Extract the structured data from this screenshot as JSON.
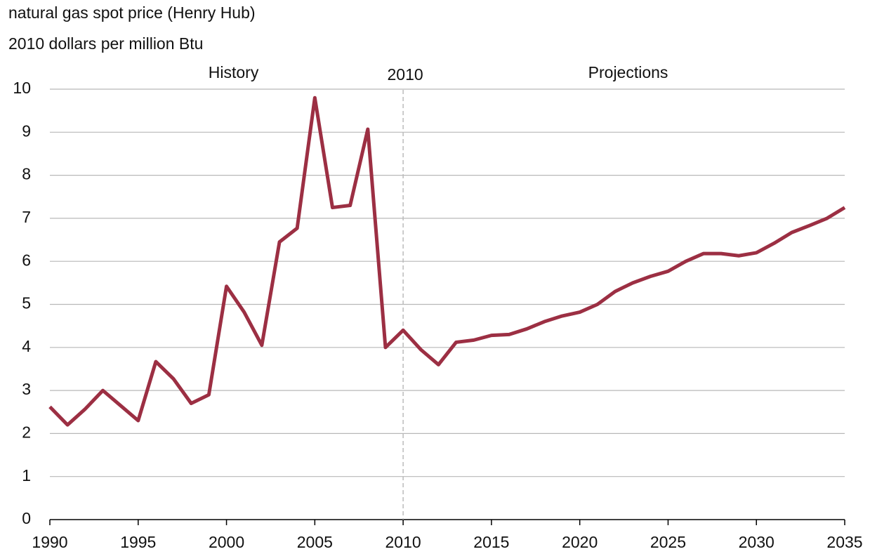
{
  "chart_data": {
    "type": "line",
    "title": "natural gas spot price (Henry Hub)",
    "subtitle": "2010 dollars per million Btu",
    "annotations": [
      "History",
      "Projections"
    ],
    "divider_x": 2010,
    "x": [
      1990,
      1991,
      1992,
      1993,
      1994,
      1995,
      1996,
      1997,
      1998,
      1999,
      2000,
      2001,
      2002,
      2003,
      2004,
      2005,
      2006,
      2007,
      2008,
      2009,
      2010,
      2011,
      2012,
      2013,
      2014,
      2015,
      2016,
      2017,
      2018,
      2019,
      2020,
      2021,
      2022,
      2023,
      2024,
      2025,
      2026,
      2027,
      2028,
      2029,
      2030,
      2031,
      2032,
      2033,
      2034,
      2035
    ],
    "series": [
      {
        "name": "natural gas spot price (Henry Hub)",
        "color": "#9c2f43",
        "values": [
          2.62,
          2.2,
          2.57,
          3.0,
          2.65,
          2.3,
          3.67,
          3.27,
          2.7,
          2.9,
          5.42,
          4.82,
          4.05,
          6.45,
          6.77,
          9.8,
          7.25,
          7.3,
          9.07,
          4.0,
          4.4,
          3.95,
          3.6,
          4.12,
          4.17,
          4.28,
          4.3,
          4.43,
          4.6,
          4.73,
          4.82,
          5.0,
          5.3,
          5.5,
          5.65,
          5.77,
          6.0,
          6.18,
          6.18,
          6.13,
          6.2,
          6.42,
          6.67,
          6.83,
          7.0,
          7.25
        ]
      }
    ],
    "xlim": [
      1990,
      2035
    ],
    "xticks": [
      1990,
      1995,
      2000,
      2005,
      2010,
      2015,
      2020,
      2025,
      2030,
      2035
    ],
    "ylim": [
      0,
      10
    ],
    "yticks": [
      0,
      1,
      2,
      3,
      4,
      5,
      6,
      7,
      8,
      9,
      10
    ],
    "grid": true
  }
}
